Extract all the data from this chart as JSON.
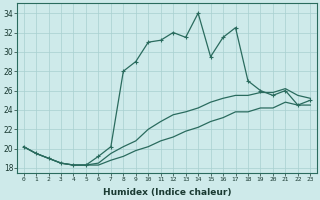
{
  "xlabel": "Humidex (Indice chaleur)",
  "bg_color": "#ceeaea",
  "line_color": "#2a6b5e",
  "grid_color": "#a8d0d0",
  "xlim": [
    -0.5,
    23.5
  ],
  "ylim": [
    17.5,
    35.0
  ],
  "xticks": [
    0,
    1,
    2,
    3,
    4,
    5,
    6,
    7,
    8,
    9,
    10,
    11,
    12,
    13,
    14,
    15,
    16,
    17,
    18,
    19,
    20,
    21,
    22,
    23
  ],
  "yticks": [
    18,
    20,
    22,
    24,
    26,
    28,
    30,
    32,
    34
  ],
  "series": [
    {
      "y": [
        20.2,
        19.5,
        19.0,
        18.5,
        18.3,
        18.3,
        18.3,
        18.8,
        19.2,
        19.8,
        20.2,
        20.8,
        21.2,
        21.8,
        22.2,
        22.8,
        23.2,
        23.8,
        23.8,
        24.2,
        24.2,
        24.8,
        24.5,
        24.5
      ],
      "marker": null,
      "lw": 0.9
    },
    {
      "y": [
        20.2,
        19.5,
        19.0,
        18.5,
        18.3,
        18.3,
        18.5,
        19.5,
        20.2,
        20.8,
        22.0,
        22.8,
        23.5,
        23.8,
        24.2,
        24.8,
        25.2,
        25.5,
        25.5,
        25.8,
        25.8,
        26.2,
        25.5,
        25.2
      ],
      "marker": null,
      "lw": 0.9
    },
    {
      "y": [
        20.2,
        19.5,
        19.0,
        18.5,
        18.3,
        18.3,
        19.2,
        20.2,
        28.0,
        29.0,
        31.0,
        31.2,
        32.0,
        31.5,
        34.0,
        29.5,
        31.5,
        32.5,
        27.0,
        26.0,
        25.5,
        26.0,
        24.5,
        25.0
      ],
      "marker": "+",
      "lw": 0.9
    }
  ]
}
